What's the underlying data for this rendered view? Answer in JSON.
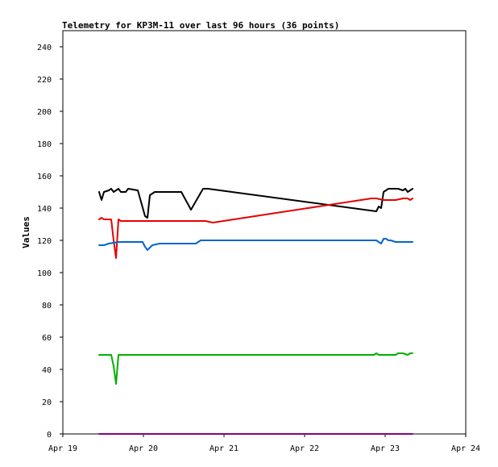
{
  "chart_data": {
    "type": "line",
    "title": "Telemetry for KP3M-11 over last 96 hours (36 points)",
    "xlabel": "",
    "ylabel": "Values",
    "xlim": [
      "2024-04-19T00:00",
      "2024-04-24T00:00"
    ],
    "ylim": [
      0,
      250
    ],
    "x_ticks": [
      "Apr 19",
      "Apr 20",
      "Apr 21",
      "Apr 22",
      "Apr 23",
      "Apr 24"
    ],
    "y_ticks": [
      0,
      20,
      40,
      60,
      80,
      100,
      120,
      140,
      160,
      180,
      200,
      220,
      240
    ],
    "grid": false,
    "legend": "none",
    "series": [
      {
        "color": "#000000",
        "x": [
          "2024-04-19T10:48",
          "2024-04-19T11:31",
          "2024-04-19T12:14",
          "2024-04-19T13:41",
          "2024-04-19T14:24",
          "2024-04-19T15:07",
          "2024-04-19T16:34",
          "2024-04-19T17:17",
          "2024-04-19T18:43",
          "2024-04-19T19:26",
          "2024-04-19T22:19",
          "2024-04-20T00:29",
          "2024-04-20T01:12",
          "2024-04-20T01:55",
          "2024-04-20T03:22",
          "2024-04-20T04:48",
          "2024-04-20T11:17",
          "2024-04-20T14:10",
          "2024-04-20T17:46",
          "2024-04-20T19:12",
          "2024-04-22T21:22",
          "2024-04-22T22:05",
          "2024-04-22T22:48",
          "2024-04-22T23:31",
          "2024-04-23T00:58",
          "2024-04-23T02:24",
          "2024-04-23T03:50",
          "2024-04-23T05:17",
          "2024-04-23T06:00",
          "2024-04-23T06:43",
          "2024-04-23T07:26",
          "2024-04-23T08:10"
        ],
        "values": [
          150,
          145,
          150,
          151,
          152,
          150,
          152,
          150,
          150,
          152,
          151,
          135,
          134,
          148,
          150,
          150,
          150,
          139,
          152,
          152,
          138,
          141,
          140,
          150,
          152,
          152,
          152,
          151,
          152,
          150,
          151,
          152
        ]
      },
      {
        "color": "#e60000",
        "x": [
          "2024-04-19T10:48",
          "2024-04-19T11:31",
          "2024-04-19T12:14",
          "2024-04-19T14:24",
          "2024-04-19T15:07",
          "2024-04-19T15:50",
          "2024-04-19T16:34",
          "2024-04-19T17:17",
          "2024-04-19T18:00",
          "2024-04-19T20:10",
          "2024-04-20T04:05",
          "2024-04-20T18:29",
          "2024-04-20T20:38",
          "2024-04-22T19:55",
          "2024-04-22T21:22",
          "2024-04-22T23:31",
          "2024-04-23T00:58",
          "2024-04-23T03:07",
          "2024-04-23T05:17",
          "2024-04-23T06:43",
          "2024-04-23T07:26",
          "2024-04-23T08:10"
        ],
        "values": [
          133,
          134,
          133,
          133,
          120,
          109,
          133,
          132,
          132,
          132,
          132,
          132,
          131,
          146,
          146,
          145,
          145,
          145,
          146,
          146,
          145,
          146
        ]
      },
      {
        "color": "#0066cc",
        "x": [
          "2024-04-19T10:48",
          "2024-04-19T12:14",
          "2024-04-19T13:41",
          "2024-04-19T16:34",
          "2024-04-19T20:10",
          "2024-04-19T23:46",
          "2024-04-20T00:29",
          "2024-04-20T01:12",
          "2024-04-20T02:38",
          "2024-04-20T04:48",
          "2024-04-20T11:17",
          "2024-04-20T15:36",
          "2024-04-20T17:02",
          "2024-04-22T20:38",
          "2024-04-22T21:22",
          "2024-04-22T22:05",
          "2024-04-22T22:48",
          "2024-04-22T23:31",
          "2024-04-23T00:14",
          "2024-04-23T00:58",
          "2024-04-23T01:41",
          "2024-04-23T03:07",
          "2024-04-23T05:17",
          "2024-04-23T08:10"
        ],
        "values": [
          117,
          117,
          118,
          119,
          119,
          119,
          116,
          114,
          117,
          118,
          118,
          118,
          120,
          120,
          120,
          119,
          118,
          121,
          121,
          120,
          120,
          119,
          119,
          119
        ]
      },
      {
        "color": "#00b000",
        "x": [
          "2024-04-19T10:48",
          "2024-04-19T14:24",
          "2024-04-19T15:07",
          "2024-04-19T15:50",
          "2024-04-19T16:34",
          "2024-04-19T17:17",
          "2024-04-20T18:00",
          "2024-04-22T20:38",
          "2024-04-22T21:22",
          "2024-04-22T22:05",
          "2024-04-23T03:07",
          "2024-04-23T03:50",
          "2024-04-23T05:17",
          "2024-04-23T06:43",
          "2024-04-23T07:26",
          "2024-04-23T08:10"
        ],
        "values": [
          49,
          49,
          42,
          31,
          49,
          49,
          49,
          49,
          50,
          49,
          49,
          50,
          50,
          49,
          50,
          50
        ]
      },
      {
        "color": "#880088",
        "x": [
          "2024-04-19T10:48",
          "2024-04-23T08:10"
        ],
        "values": [
          0,
          0
        ]
      }
    ]
  }
}
